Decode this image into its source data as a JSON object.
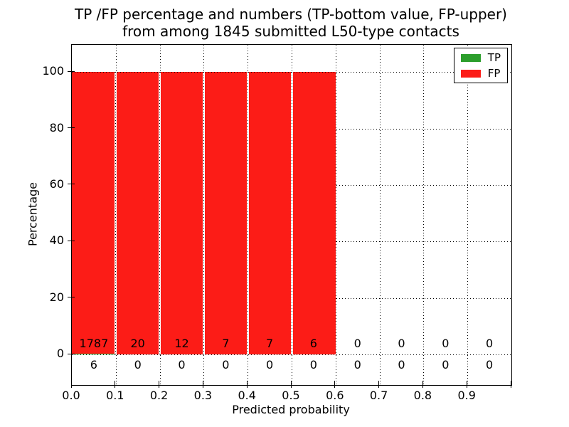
{
  "chart_data": {
    "type": "bar",
    "stacked": true,
    "title_line1": "TP /FP percentage and numbers (TP-bottom value, FP-upper)",
    "title_line2": "from among 1845 submitted L50-type contacts",
    "xlabel": "Predicted probability",
    "ylabel": "Percentage",
    "x_tick_labels": [
      "0.0",
      "0.1",
      "0.2",
      "0.3",
      "0.4",
      "0.5",
      "0.6",
      "0.7",
      "0.8",
      "0.9"
    ],
    "y_ticks": [
      0,
      20,
      40,
      60,
      80,
      100
    ],
    "xlim": [
      0.0,
      1.0
    ],
    "ylim": [
      -10.8,
      109.6
    ],
    "grid": "dotted",
    "bins": {
      "starts": [
        0.0,
        0.1,
        0.2,
        0.3,
        0.4,
        0.5,
        0.6,
        0.7,
        0.8,
        0.9
      ],
      "width": 0.1
    },
    "series": [
      {
        "name": "TP",
        "color": "#2c9e2c",
        "counts": [
          6,
          0,
          0,
          0,
          0,
          0,
          0,
          0,
          0,
          0
        ],
        "count_label_position": "below-axis"
      },
      {
        "name": "FP",
        "color": "#fc1c17",
        "counts": [
          1787,
          20,
          12,
          7,
          7,
          6,
          0,
          0,
          0,
          0
        ],
        "count_label_position": "above-axis"
      }
    ],
    "legend": {
      "position": "upper right",
      "entries": [
        "TP",
        "FP"
      ]
    }
  }
}
